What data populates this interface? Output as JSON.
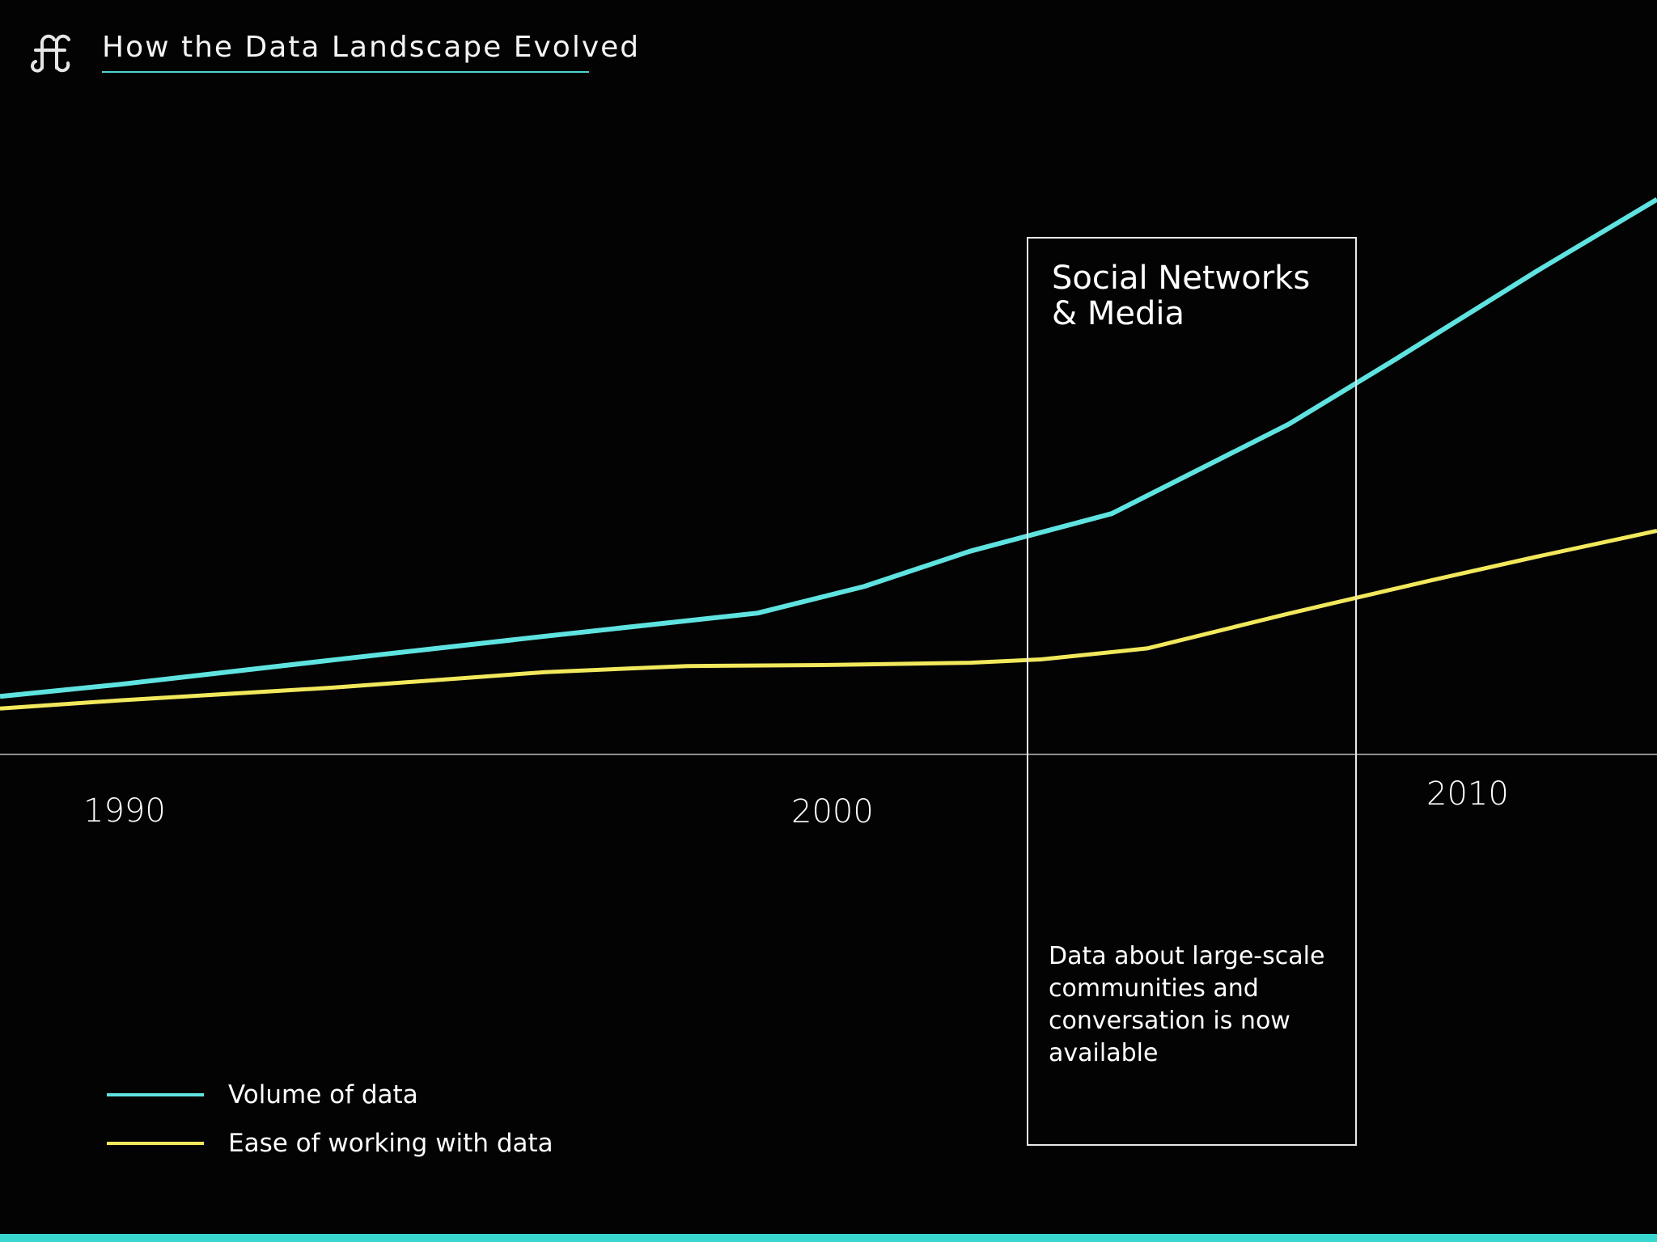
{
  "header": {
    "title": "How the Data Landscape Evolved",
    "logo_icon": "ff-monogram-icon"
  },
  "colors": {
    "background": "#030304",
    "volume": "#5fe3e0",
    "ease": "#f2e85c",
    "accent": "#39d7cf",
    "axis": "#bdbdbd"
  },
  "chart_data": {
    "type": "line",
    "xlabel": "",
    "ylabel": "",
    "xlim": [
      1988.3,
      2011.7
    ],
    "ylim": [
      0,
      100
    ],
    "x_ticks": [
      "1990",
      "2000",
      "2010"
    ],
    "series": [
      {
        "name": "Volume of data",
        "points": [
          [
            1988.3,
            10.5
          ],
          [
            1990,
            12.7
          ],
          [
            1993,
            17.1
          ],
          [
            1996,
            21.4
          ],
          [
            1999,
            25.6
          ],
          [
            2000.5,
            30.4
          ],
          [
            2002,
            36.8
          ],
          [
            2004,
            43.6
          ],
          [
            2006.5,
            59.8
          ],
          [
            2008,
            71.5
          ],
          [
            2010,
            87.5
          ],
          [
            2011.7,
            100.5
          ]
        ]
      },
      {
        "name": "Ease of working with data",
        "points": [
          [
            1988.3,
            8.3
          ],
          [
            1990,
            9.8
          ],
          [
            1993,
            12.1
          ],
          [
            1996,
            14.9
          ],
          [
            1998,
            16.0
          ],
          [
            2000,
            16.2
          ],
          [
            2002,
            16.6
          ],
          [
            2003,
            17.2
          ],
          [
            2004.5,
            19.2
          ],
          [
            2006.5,
            25.5
          ],
          [
            2008.5,
            31.5
          ],
          [
            2010,
            35.8
          ],
          [
            2011.7,
            40.5
          ]
        ]
      }
    ],
    "annotation": {
      "title": "Social Networks\n& Media",
      "text": "Data about large-scale communities and conversation is now available",
      "x_range": [
        2002.9,
        2007.6
      ]
    },
    "legend": {
      "position": "bottom-left",
      "items": [
        {
          "label": "Volume of data"
        },
        {
          "label": "Ease of working with data"
        }
      ]
    },
    "grid": false
  }
}
